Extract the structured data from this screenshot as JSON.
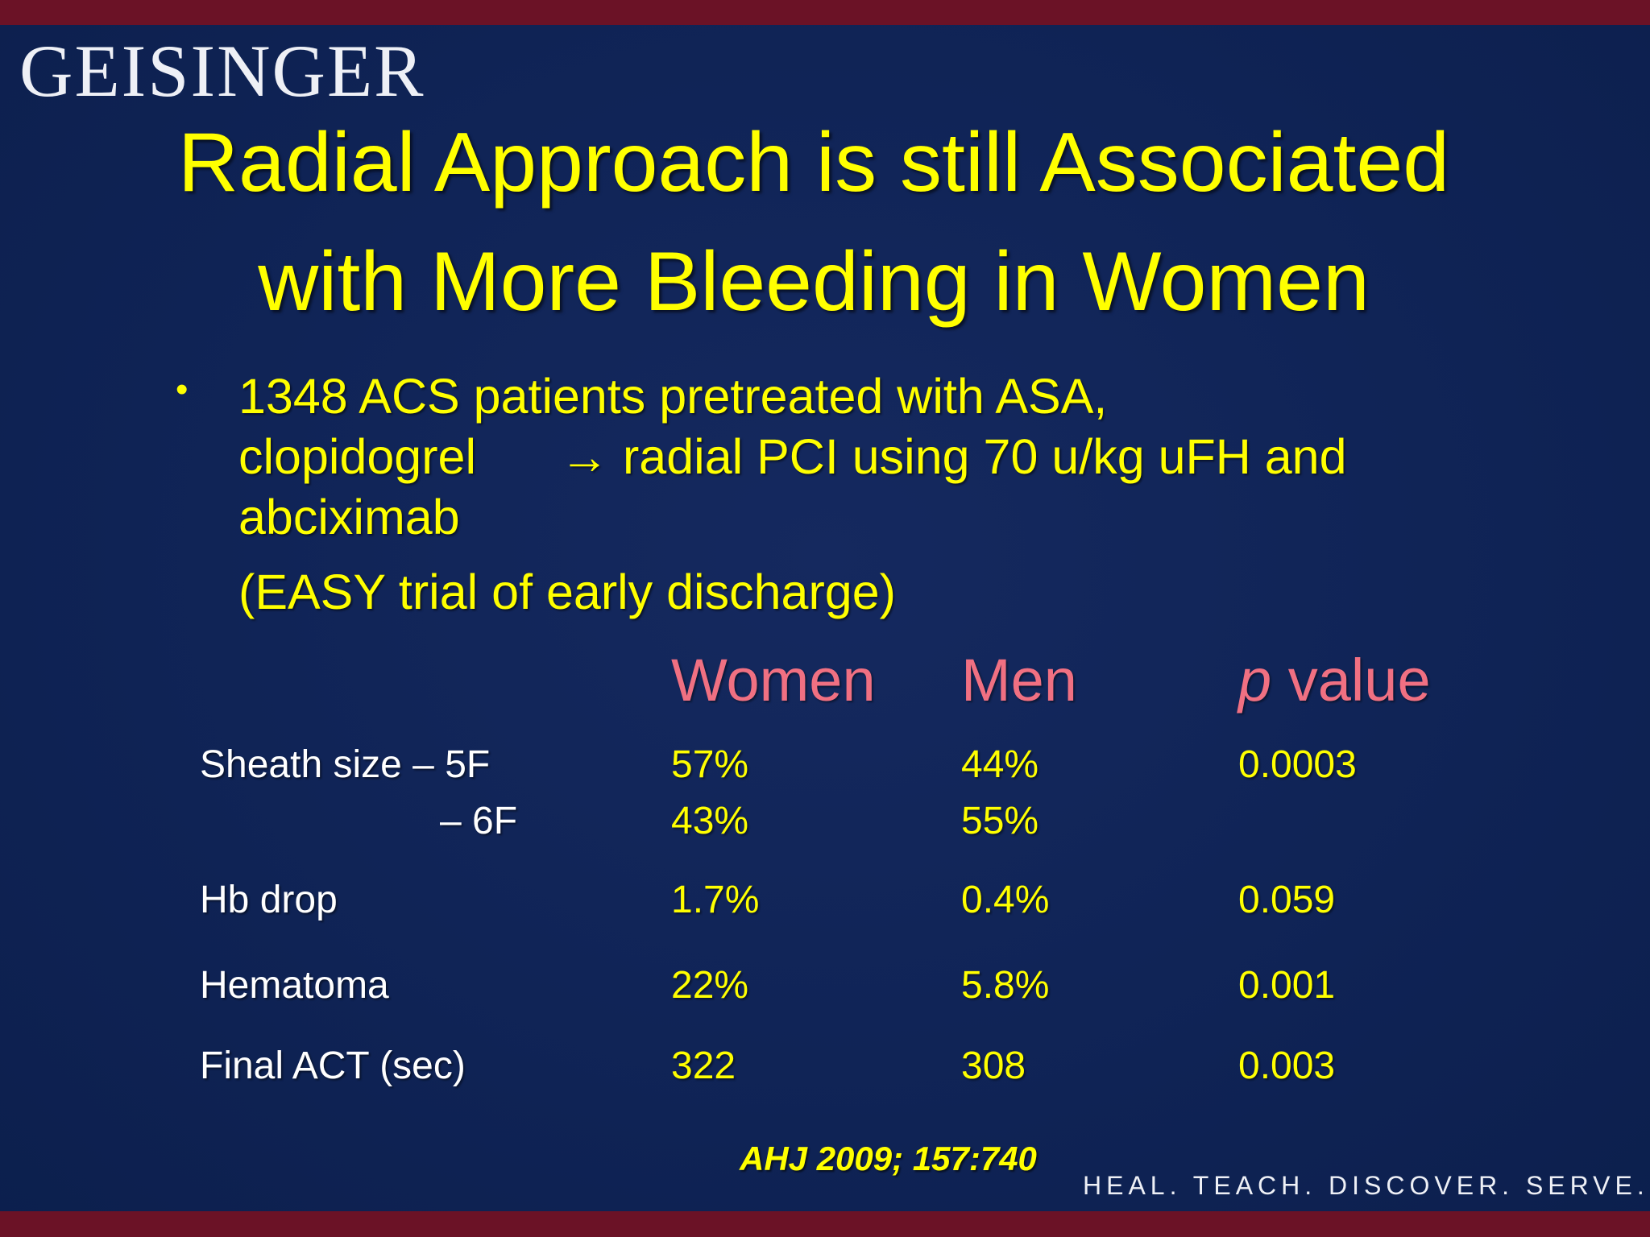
{
  "logo": "GEISINGER",
  "title": {
    "line1": "Radial Approach is still Associated",
    "line2": "with More Bleeding in Women"
  },
  "bullet": {
    "marker": "•",
    "line1": "1348 ACS patients pretreated with ASA,",
    "line2a": "clopidogrel",
    "line2b": "→ radial PCI using 70 u/kg uFH and",
    "line3": "abciximab",
    "line4": "(EASY trial of early discharge)"
  },
  "table": {
    "headers": {
      "women": "Women",
      "men": "Men",
      "p_italic": "p",
      "p_rest": " value"
    },
    "rows": [
      {
        "label": "Sheath size – 5F",
        "women": "57%",
        "men": "44%",
        "p": "0.0003"
      },
      {
        "label": "– 6F",
        "women": "43%",
        "men": "55%",
        "p": ""
      },
      {
        "label": "Hb drop",
        "women": "1.7%",
        "men": "0.4%",
        "p": "0.059"
      },
      {
        "label": "Hematoma",
        "women": "22%",
        "men": "5.8%",
        "p": "0.001"
      },
      {
        "label": "Final ACT (sec)",
        "women": "322",
        "men": "308",
        "p": "0.003"
      }
    ]
  },
  "citation": "AHJ 2009; 157:740",
  "tagline": "HEAL. TEACH. DISCOVER. SERVE.",
  "colors": {
    "background": "#0f2456",
    "band": "#6b1226",
    "title": "#ffff00",
    "header": "#f07082",
    "label": "#ffffff"
  }
}
